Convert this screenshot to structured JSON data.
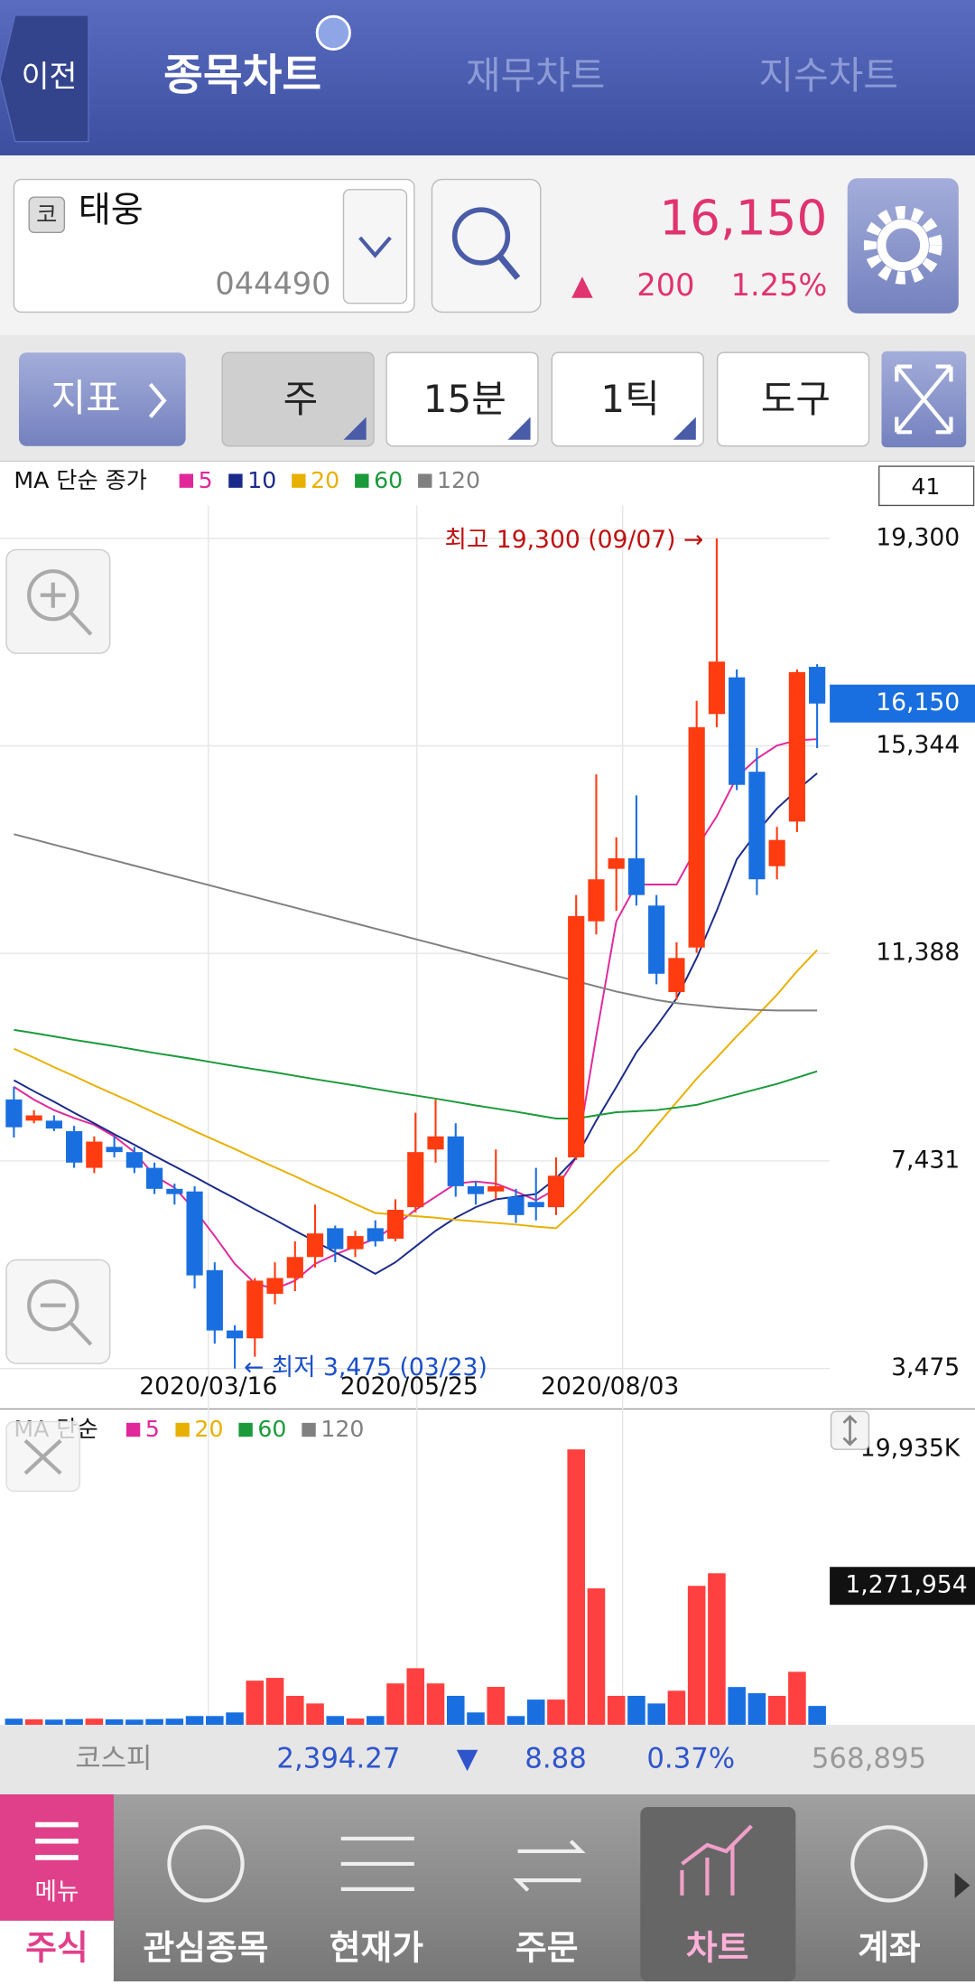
{
  "header": {
    "back": "이전",
    "tabs": [
      "종목차트",
      "재무차트",
      "지수차트"
    ]
  },
  "stock": {
    "market_badge": "코",
    "name": "태웅",
    "code": "044490",
    "price": "16,150",
    "change_arrow": "▲",
    "change": "200",
    "change_pct": "1.25%"
  },
  "toolbar": {
    "indicator": "지표",
    "buttons": [
      "주",
      "15분",
      "1틱",
      "도구"
    ]
  },
  "price_chart": {
    "type": "candlestick",
    "legend_title": "MA 단순 종가",
    "count": "41",
    "categories": [
      null,
      null,
      null,
      null,
      null,
      null,
      null,
      null,
      null,
      null,
      "2020/03/16",
      null,
      null,
      null,
      null,
      null,
      null,
      null,
      null,
      null,
      "2020/05/25",
      null,
      null,
      null,
      null,
      null,
      null,
      null,
      null,
      null,
      "2020/08/03",
      null,
      null,
      null,
      null,
      null,
      null,
      null,
      null,
      null,
      null
    ],
    "open": [
      8604,
      8200,
      8200,
      8000,
      7300,
      7700,
      7600,
      7300,
      6900,
      6850,
      5350,
      4200,
      4050,
      4900,
      5200,
      5600,
      6150,
      5750,
      6150,
      5950,
      6550,
      7650,
      7900,
      6950,
      6850,
      6750,
      6650,
      6550,
      7500,
      12000,
      13000,
      13200,
      12300,
      10650,
      11500,
      15950,
      16650,
      14850,
      13050,
      13900,
      16850
    ],
    "high": [
      8845,
      8400,
      8300,
      8100,
      7900,
      7900,
      7700,
      7400,
      7000,
      6950,
      5500,
      4300,
      5200,
      5500,
      5900,
      6600,
      6200,
      6100,
      6300,
      6700,
      8350,
      8600,
      8150,
      7050,
      7650,
      6900,
      7300,
      7500,
      12500,
      14800,
      13600,
      14400,
      12500,
      11600,
      16200,
      19300,
      16800,
      15300,
      13800,
      16800,
      16900
    ],
    "low": [
      7880,
      8150,
      8000,
      7300,
      7200,
      7500,
      7200,
      6800,
      6600,
      5000,
      3950,
      3475,
      3700,
      4700,
      4950,
      5400,
      5500,
      5600,
      5800,
      5900,
      6450,
      7400,
      6750,
      6600,
      6700,
      6250,
      6300,
      6400,
      7450,
      11750,
      12200,
      12300,
      10800,
      10500,
      11400,
      15700,
      14500,
      12500,
      12800,
      13700,
      15300
    ],
    "close": [
      8074,
      8300,
      8050,
      7400,
      7800,
      7600,
      7300,
      6900,
      6800,
      5250,
      4200,
      4050,
      5150,
      5200,
      5600,
      6050,
      5750,
      6000,
      5900,
      6500,
      7600,
      7900,
      6950,
      6800,
      6950,
      6400,
      6550,
      7150,
      12100,
      12800,
      13200,
      12500,
      11000,
      11300,
      15700,
      16950,
      14600,
      12800,
      13550,
      16750,
      16150
    ],
    "up_color": "#ff3b10",
    "down_color": "#1a6fe0",
    "ylim": [
      3475,
      19300
    ],
    "yticks": [
      {
        "value": 19300,
        "label": "19,300"
      },
      {
        "value": 15344,
        "label": "15,344"
      },
      {
        "value": 11388,
        "label": "11,388"
      },
      {
        "value": 7431,
        "label": "7,431"
      },
      {
        "value": 3475,
        "label": "3,475"
      }
    ],
    "current": {
      "value": 16150,
      "label": "16,150"
    },
    "annotations": [
      "최고 19,300 (09/07) →",
      "← 최저 3,475 (03/23)"
    ],
    "ma": [
      {
        "name": "5",
        "color": "#e0289b",
        "values": [
          8845,
          8600,
          8400,
          8250,
          8120,
          7900,
          7600,
          7150,
          6920,
          6500,
          6000,
          5470,
          5100,
          4990,
          5150,
          5470,
          5650,
          5800,
          5950,
          6200,
          6500,
          6750,
          7000,
          7040,
          7000,
          6850,
          6680,
          6900,
          7500,
          9810,
          12000,
          12700,
          12700,
          12700,
          13400,
          14000,
          14750,
          15100,
          15350,
          15450,
          15470
        ]
      },
      {
        "name": "10",
        "color": "#1a2a8a",
        "values": [
          8970,
          8760,
          8560,
          8350,
          8150,
          7940,
          7740,
          7530,
          7330,
          7130,
          6920,
          6720,
          6510,
          6310,
          6100,
          5900,
          5690,
          5490,
          5280,
          5500,
          5800,
          6100,
          6350,
          6550,
          6700,
          6750,
          6800,
          7100,
          7500,
          8200,
          8840,
          9500,
          10000,
          10530,
          11300,
          12200,
          13180,
          13700,
          14150,
          14500,
          14820
        ]
      },
      {
        "name": "20",
        "color": "#e8b000",
        "values": [
          9570,
          9400,
          9220,
          9050,
          8870,
          8700,
          8530,
          8350,
          8180,
          8000,
          7830,
          7660,
          7480,
          7310,
          7140,
          6960,
          6790,
          6610,
          6440,
          6410,
          6380,
          6350,
          6310,
          6280,
          6250,
          6220,
          6180,
          6150,
          6500,
          6900,
          7300,
          7640,
          8100,
          8550,
          9000,
          9400,
          9810,
          10200,
          10600,
          11050,
          11450
        ]
      },
      {
        "name": "60",
        "color": "#1a9a3a",
        "values": [
          9930,
          9870,
          9805,
          9740,
          9680,
          9620,
          9555,
          9490,
          9430,
          9370,
          9305,
          9240,
          9180,
          9120,
          9055,
          8990,
          8930,
          8870,
          8805,
          8740,
          8680,
          8620,
          8555,
          8490,
          8430,
          8370,
          8305,
          8240,
          8240,
          8300,
          8360,
          8380,
          8400,
          8450,
          8500,
          8600,
          8700,
          8800,
          8900,
          9020,
          9140
        ]
      },
      {
        "name": "120",
        "color": "#808080",
        "values": [
          13660,
          13560,
          13460,
          13360,
          13260,
          13160,
          13060,
          12960,
          12860,
          12760,
          12660,
          12560,
          12460,
          12360,
          12260,
          12160,
          12060,
          11960,
          11860,
          11760,
          11660,
          11560,
          11460,
          11360,
          11260,
          11160,
          11060,
          10960,
          10860,
          10760,
          10660,
          10580,
          10500,
          10440,
          10400,
          10360,
          10330,
          10310,
          10300,
          10300,
          10300
        ]
      }
    ]
  },
  "volume_chart": {
    "type": "bar",
    "legend_title": "MA 단순",
    "ma_legend": [
      {
        "name": "5",
        "color": "#e0289b"
      },
      {
        "name": "20",
        "color": "#e8b000"
      },
      {
        "name": "60",
        "color": "#1a9a3a"
      },
      {
        "name": "120",
        "color": "#808080"
      }
    ],
    "values": [
      450000,
      400000,
      380000,
      420000,
      450000,
      400000,
      380000,
      420000,
      450000,
      640000,
      640000,
      900000,
      3200000,
      3400000,
      2100000,
      1550000,
      640000,
      460000,
      640000,
      3000000,
      4100000,
      3000000,
      2100000,
      900000,
      2750000,
      640000,
      1830000,
      1830000,
      19935000,
      9880000,
      2100000,
      2100000,
      1550000,
      2470000,
      10060000,
      10970000,
      2740000,
      2290000,
      2100000,
      3840000,
      1370000
    ],
    "ylim": [
      0,
      19935000
    ],
    "yticks": [
      {
        "value": 19935000,
        "label": "19,935K"
      }
    ],
    "current_label": "1,271,954"
  },
  "index_bar": {
    "name": "코스피",
    "value": "2,394.27",
    "arrow": "▼",
    "change": "8.88",
    "change_pct": "0.37%",
    "volume": "568,895"
  },
  "nav": {
    "menu": "메뉴",
    "items": [
      "주식",
      "관심종목",
      "현재가",
      "주문",
      "차트",
      "계좌"
    ]
  }
}
